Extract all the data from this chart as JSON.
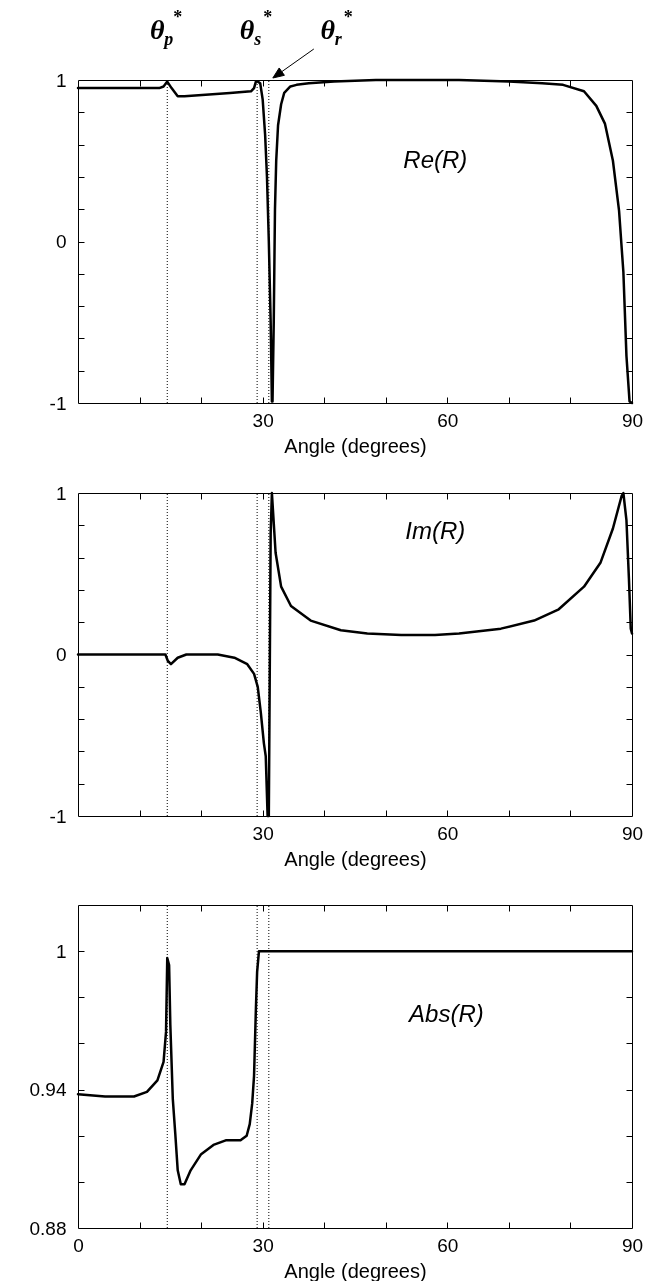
{
  "chart_data": [
    {
      "type": "line",
      "xlabel": "Angle (degrees)",
      "xlim": [
        0,
        90
      ],
      "ylim": [
        -1,
        1
      ],
      "xticks": [
        {
          "value": 0,
          "label": null
        },
        {
          "value": 10,
          "label": null
        },
        {
          "value": 20,
          "label": null
        },
        30,
        {
          "value": 40,
          "label": null
        },
        {
          "value": 50,
          "label": null
        },
        60,
        {
          "value": 70,
          "label": null
        },
        {
          "value": 80,
          "label": null
        },
        90
      ],
      "yticks": [
        -1,
        {
          "value": -0.8,
          "label": null
        },
        {
          "value": -0.6,
          "label": null
        },
        {
          "value": -0.4,
          "label": null
        },
        {
          "value": -0.2,
          "label": null
        },
        0,
        {
          "value": 0.2,
          "label": null
        },
        {
          "value": 0.4,
          "label": null
        },
        {
          "value": 0.6,
          "label": null
        },
        {
          "value": 0.8,
          "label": null
        },
        1
      ],
      "x": [
        0,
        5,
        10,
        13.2,
        13.9,
        14.5,
        15.2,
        16.2,
        17.3,
        21.3,
        24.7,
        28.1,
        28.6,
        28.9,
        29.2,
        29.6,
        30.0,
        30.4,
        30.7,
        31.0,
        31.3,
        31.5,
        31.6,
        31.8,
        32.0,
        32.2,
        32.5,
        33.0,
        33.5,
        34.5,
        35.5,
        37.5,
        41.6,
        48.4,
        61.9,
        70,
        75.4,
        78.8,
        82.2,
        84.2,
        85.6,
        86.9,
        87.9,
        88.6,
        89.1,
        89.6,
        90
      ],
      "series": [
        {
          "name": "Re(R)",
          "color": "#000000",
          "values": [
            0.95,
            0.95,
            0.95,
            0.95,
            0.96,
            0.99,
            0.95,
            0.9,
            0.9,
            0.91,
            0.92,
            0.93,
            0.95,
            0.99,
            0.99,
            0.98,
            0.88,
            0.66,
            0.4,
            0,
            -0.5,
            -0.99,
            -0.99,
            -0.5,
            0.2,
            0.5,
            0.72,
            0.85,
            0.92,
            0.96,
            0.97,
            0.98,
            0.99,
            1,
            1,
            0.99,
            0.98,
            0.97,
            0.93,
            0.84,
            0.73,
            0.5,
            0.19,
            -0.19,
            -0.71,
            -0.99,
            -1
          ]
        }
      ],
      "ref_lines": [
        {
          "axis": "x",
          "value": 14.5,
          "label": "θ$_{p}$$^{*}$",
          "color": "#000000",
          "line_style": "dotted"
        },
        {
          "axis": "x",
          "value": 29.1,
          "label": "θ$_{s}$$^{*}$",
          "color": "#000000",
          "line_style": "dotted"
        },
        {
          "axis": "x",
          "value": 31,
          "label": "θ$_{r}$$^{*}$",
          "color": "#000000",
          "line_style": "dotted"
        }
      ]
    },
    {
      "type": "line",
      "xlabel": "Angle (degrees)",
      "xlim": [
        0,
        90
      ],
      "ylim": [
        -1,
        1
      ],
      "xticks": [
        {
          "value": 0,
          "label": null
        },
        {
          "value": 10,
          "label": null
        },
        {
          "value": 20,
          "label": null
        },
        30,
        {
          "value": 40,
          "label": null
        },
        {
          "value": 50,
          "label": null
        },
        60,
        {
          "value": 70,
          "label": null
        },
        {
          "value": 80,
          "label": null
        },
        90
      ],
      "yticks": [
        -1,
        {
          "value": -0.8,
          "label": null
        },
        {
          "value": -0.6,
          "label": null
        },
        {
          "value": -0.4,
          "label": null
        },
        {
          "value": -0.2,
          "label": null
        },
        0,
        {
          "value": 0.2,
          "label": null
        },
        {
          "value": 0.4,
          "label": null
        },
        {
          "value": 0.6,
          "label": null
        },
        {
          "value": 0.8,
          "label": null
        },
        1
      ],
      "x": [
        0,
        10,
        14.2,
        14.6,
        15.1,
        16.2,
        17.6,
        22.7,
        25.4,
        27.5,
        28.6,
        29.2,
        29.7,
        30.2,
        30.5,
        30.8,
        31.0,
        31.3,
        31.5,
        32.1,
        33.0,
        34.6,
        37.8,
        42.7,
        47.0,
        52.5,
        58,
        61.9,
        68.7,
        74.1,
        78.1,
        82.2,
        84.9,
        86.9,
        88.3,
        88.6,
        89.1,
        89.5,
        89.8,
        90
      ],
      "series": [
        {
          "name": "Im(R)",
          "color": "#000000",
          "values": [
            0,
            0,
            0,
            -0.04,
            -0.06,
            -0.02,
            0,
            0,
            -0.02,
            -0.06,
            -0.12,
            -0.2,
            -0.36,
            -0.55,
            -0.63,
            -1,
            -1,
            0.75,
            1,
            0.63,
            0.42,
            0.3,
            0.21,
            0.15,
            0.13,
            0.12,
            0.12,
            0.13,
            0.16,
            0.21,
            0.28,
            0.42,
            0.57,
            0.78,
            0.98,
            1,
            0.83,
            0.47,
            0.16,
            0.13
          ]
        }
      ],
      "ref_lines": [
        {
          "axis": "x",
          "value": 14.5,
          "color": "#000000",
          "line_style": "dotted"
        },
        {
          "axis": "x",
          "value": 29.1,
          "color": "#000000",
          "line_style": "dotted"
        },
        {
          "axis": "x",
          "value": 31,
          "color": "#000000",
          "line_style": "dotted"
        }
      ]
    },
    {
      "type": "line",
      "xlabel": "Angle (degrees)",
      "xlim": [
        0,
        90
      ],
      "ylim": [
        0.88,
        1.02
      ],
      "xticks": [
        0,
        {
          "value": 10,
          "label": null
        },
        {
          "value": 20,
          "label": null
        },
        30,
        {
          "value": 40,
          "label": null
        },
        {
          "value": 50,
          "label": null
        },
        60,
        {
          "value": 70,
          "label": null
        },
        {
          "value": 80,
          "label": null
        },
        90
      ],
      "yticks": [
        0.88,
        {
          "value": 0.9,
          "label": null
        },
        {
          "value": 0.92,
          "label": null
        },
        0.94,
        {
          "value": 0.96,
          "label": null
        },
        {
          "value": 0.98,
          "label": null
        },
        1
      ],
      "x": [
        0,
        4.4,
        9.1,
        11.2,
        12.9,
        13.9,
        14.3,
        14.5,
        14.8,
        15.0,
        15.4,
        15.8,
        16.2,
        16.7,
        17.3,
        18.3,
        20.0,
        22.0,
        24.0,
        26.4,
        27.4,
        27.9,
        28.3,
        28.6,
        28.9,
        29.1,
        29.4,
        90
      ],
      "series": [
        {
          "name": "Abs(R)",
          "color": "#000000",
          "values": [
            0.938,
            0.937,
            0.937,
            0.939,
            0.944,
            0.952,
            0.965,
            0.997,
            0.994,
            0.968,
            0.936,
            0.921,
            0.905,
            0.899,
            0.899,
            0.905,
            0.912,
            0.916,
            0.918,
            0.918,
            0.92,
            0.925,
            0.934,
            0.946,
            0.975,
            0.991,
            1,
            1
          ]
        }
      ],
      "ref_lines": [
        {
          "axis": "x",
          "value": 14.5,
          "color": "#000000",
          "line_style": "dotted"
        },
        {
          "axis": "x",
          "value": 29.1,
          "color": "#000000",
          "line_style": "dotted"
        },
        {
          "axis": "x",
          "value": 31,
          "color": "#000000",
          "line_style": "dotted"
        }
      ]
    }
  ]
}
